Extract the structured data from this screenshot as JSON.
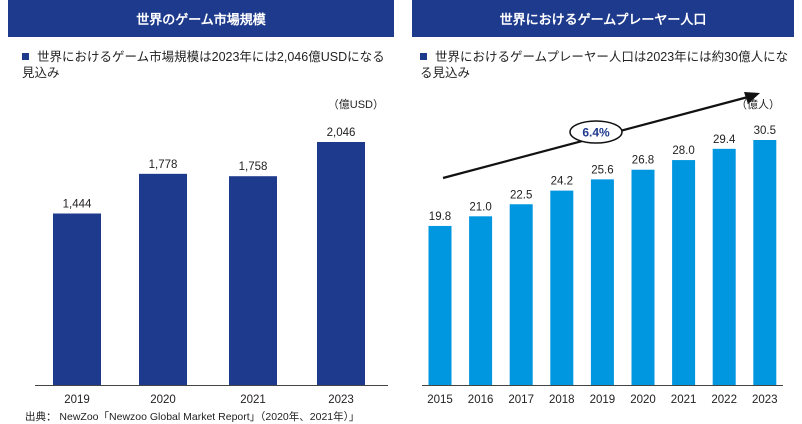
{
  "left_panel": {
    "header": "世界のゲーム市場規模",
    "bullet": "世界におけるゲーム市場規模は2023年には2,046億USDになる見込み"
  },
  "right_panel": {
    "header": "世界におけるゲームプレーヤー人口",
    "bullet": "世界におけるゲームプレーヤー人口は2023年には約30億人になる見込み"
  },
  "source": "出典： NewZoo「Newzoo Global Market Report」（2020年、2021年）」",
  "colors": {
    "header_bg": "#1e3a8c",
    "left_bars": "#1e3a8c",
    "right_bars": "#0096e0",
    "arrow": "#111111"
  },
  "chart_data": [
    {
      "type": "bar",
      "title": "世界のゲーム市場規模",
      "unit_label": "（億USD）",
      "categories": [
        "2019",
        "2020",
        "2021",
        "2023"
      ],
      "values": [
        1444,
        1778,
        1758,
        2046
      ],
      "value_labels": [
        "1,444",
        "1,778",
        "1,758",
        "2,046"
      ],
      "ylim": [
        0,
        2300
      ],
      "grid": false
    },
    {
      "type": "bar",
      "title": "世界におけるゲームプレーヤー人口",
      "unit_label": "（億人）",
      "categories": [
        "2015",
        "2016",
        "2017",
        "2018",
        "2019",
        "2020",
        "2021",
        "2022",
        "2023"
      ],
      "values": [
        19.8,
        21.0,
        22.5,
        24.2,
        25.6,
        26.8,
        28.0,
        29.4,
        30.5
      ],
      "value_labels": [
        "19.8",
        "21.0",
        "22.5",
        "24.2",
        "25.6",
        "26.8",
        "28.0",
        "29.4",
        "30.5"
      ],
      "annotation": "6.4%",
      "grid": false
    }
  ]
}
